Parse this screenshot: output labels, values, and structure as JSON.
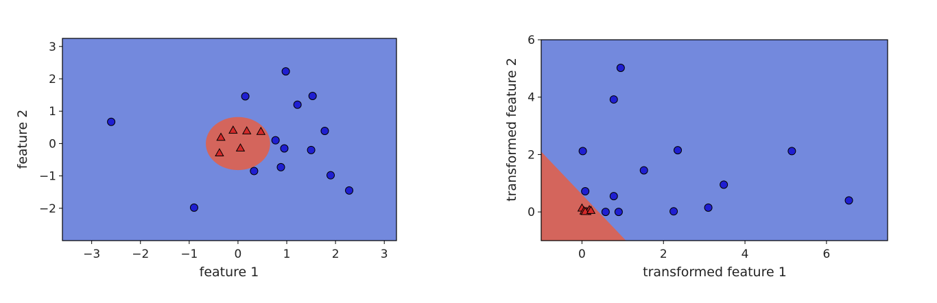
{
  "colors": {
    "class_blue": "#1f1fd1",
    "class_red": "#d42a2a",
    "region_blue": "#7389dd",
    "region_red": "#d4655c",
    "marker_edge": "#000000"
  },
  "chart_data": [
    {
      "type": "scatter",
      "xlabel": "feature 1",
      "ylabel": "feature 2",
      "xlim": [
        -3.6,
        3.25
      ],
      "ylim": [
        -3.0,
        3.25
      ],
      "xticks": [
        -3,
        -2,
        -1,
        0,
        1,
        2,
        3
      ],
      "yticks": [
        -2,
        -1,
        0,
        1,
        2,
        3
      ],
      "xtick_labels": [
        "−3",
        "−2",
        "−1",
        "0",
        "1",
        "2",
        "3"
      ],
      "ytick_labels": [
        "−2",
        "−1",
        "0",
        "1",
        "2",
        "3"
      ],
      "decision_region": {
        "shape": "ellipse",
        "center": [
          0.0,
          0.0
        ],
        "radii": [
          0.66,
          0.82
        ]
      },
      "series": [
        {
          "marker": "circle",
          "points": [
            [
              -2.6,
              0.67
            ],
            [
              0.98,
              2.23
            ],
            [
              0.15,
              1.46
            ],
            [
              1.53,
              1.47
            ],
            [
              1.22,
              1.2
            ],
            [
              1.78,
              0.39
            ],
            [
              0.77,
              0.1
            ],
            [
              0.95,
              -0.15
            ],
            [
              1.5,
              -0.2
            ],
            [
              0.33,
              -0.85
            ],
            [
              0.88,
              -0.73
            ],
            [
              1.9,
              -0.98
            ],
            [
              2.28,
              -1.45
            ],
            [
              -0.9,
              -1.98
            ]
          ]
        },
        {
          "marker": "triangle",
          "points": [
            [
              -0.35,
              0.18
            ],
            [
              -0.1,
              0.4
            ],
            [
              0.18,
              0.38
            ],
            [
              0.47,
              0.36
            ],
            [
              -0.38,
              -0.3
            ],
            [
              0.05,
              -0.15
            ]
          ]
        }
      ]
    },
    {
      "type": "scatter",
      "xlabel": "transformed feature 1",
      "ylabel": "transformed feature 2",
      "xlim": [
        -1.0,
        7.5
      ],
      "ylim": [
        -1.0,
        6.0
      ],
      "xticks": [
        0,
        2,
        4,
        6
      ],
      "yticks": [
        0,
        2,
        4,
        6
      ],
      "xtick_labels": [
        "0",
        "2",
        "4",
        "6"
      ],
      "ytick_labels": [
        "0",
        "2",
        "4",
        "6"
      ],
      "decision_region": {
        "shape": "halfplane",
        "line": [
          [
            -1.0,
            2.1
          ],
          [
            1.08,
            -1.0
          ]
        ]
      },
      "series": [
        {
          "marker": "circle",
          "points": [
            [
              0.95,
              5.02
            ],
            [
              0.78,
              3.92
            ],
            [
              0.02,
              2.12
            ],
            [
              2.35,
              2.15
            ],
            [
              5.15,
              2.12
            ],
            [
              1.52,
              1.45
            ],
            [
              3.48,
              0.95
            ],
            [
              0.08,
              0.72
            ],
            [
              0.78,
              0.55
            ],
            [
              6.55,
              0.4
            ],
            [
              3.1,
              0.15
            ],
            [
              0.58,
              0.0
            ],
            [
              0.9,
              0.0
            ],
            [
              2.25,
              0.02
            ]
          ]
        },
        {
          "marker": "triangle",
          "points": [
            [
              0.0,
              0.12
            ],
            [
              0.05,
              0.02
            ],
            [
              0.12,
              0.0
            ],
            [
              0.18,
              0.06
            ],
            [
              0.08,
              0.0
            ],
            [
              0.22,
              0.04
            ]
          ]
        }
      ]
    }
  ]
}
